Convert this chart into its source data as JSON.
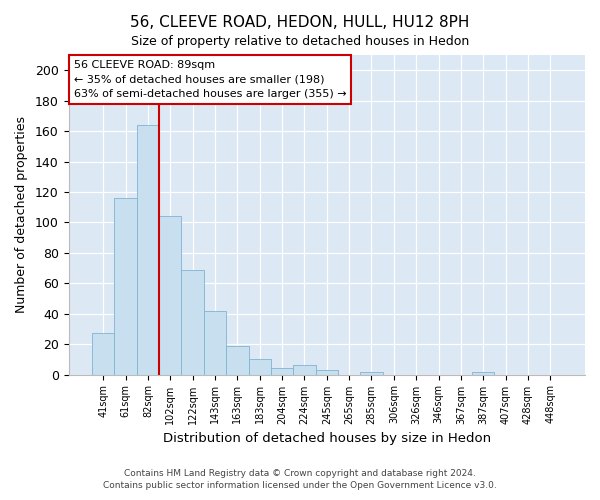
{
  "title": "56, CLEEVE ROAD, HEDON, HULL, HU12 8PH",
  "subtitle": "Size of property relative to detached houses in Hedon",
  "xlabel": "Distribution of detached houses by size in Hedon",
  "ylabel": "Number of detached properties",
  "bar_color": "#c8dff0",
  "bar_edge_color": "#7fb3d3",
  "background_color": "#ffffff",
  "grid_color": "#dce8f3",
  "bins": [
    "41sqm",
    "61sqm",
    "82sqm",
    "102sqm",
    "122sqm",
    "143sqm",
    "163sqm",
    "183sqm",
    "204sqm",
    "224sqm",
    "245sqm",
    "265sqm",
    "285sqm",
    "306sqm",
    "326sqm",
    "346sqm",
    "367sqm",
    "387sqm",
    "407sqm",
    "428sqm",
    "448sqm"
  ],
  "values": [
    27,
    116,
    164,
    104,
    69,
    42,
    19,
    10,
    4,
    6,
    3,
    0,
    2,
    0,
    0,
    0,
    0,
    2,
    0,
    0,
    0
  ],
  "ylim": [
    0,
    210
  ],
  "yticks": [
    0,
    20,
    40,
    60,
    80,
    100,
    120,
    140,
    160,
    180,
    200
  ],
  "property_line_color": "#cc0000",
  "property_line_index": 2,
  "annotation_line1": "56 CLEEVE ROAD: 89sqm",
  "annotation_line2": "← 35% of detached houses are smaller (198)",
  "annotation_line3": "63% of semi-detached houses are larger (355) →",
  "footer_line1": "Contains HM Land Registry data © Crown copyright and database right 2024.",
  "footer_line2": "Contains public sector information licensed under the Open Government Licence v3.0."
}
